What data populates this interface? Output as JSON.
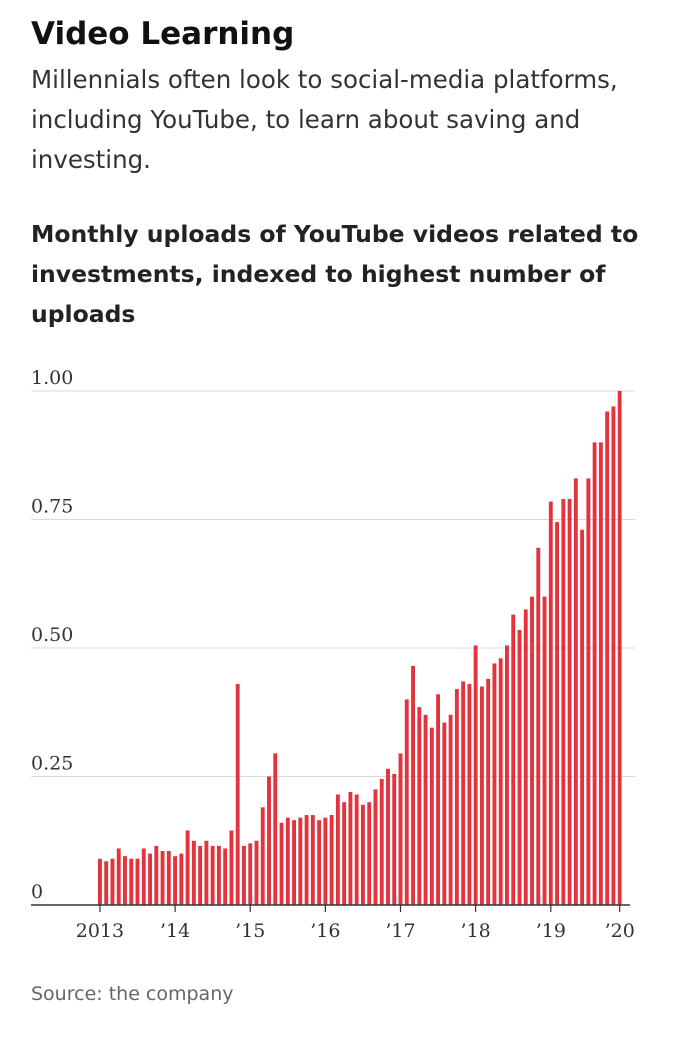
{
  "header": {
    "title": "Video Learning",
    "subtitle": "Millennials often look to social-media platforms, including YouTube, to learn about saving and investing."
  },
  "source": "Source: the company",
  "colors": {
    "bar": "#e4333d",
    "grid": "#d9d9d9",
    "axis": "#333333"
  },
  "chart_data": {
    "type": "bar",
    "title": "Monthly uploads of YouTube videos related to investments, indexed to highest number of uploads",
    "xlabel": "",
    "ylabel": "",
    "ylim": [
      0,
      1
    ],
    "yticks": [
      0,
      0.25,
      0.5,
      0.75,
      1.0
    ],
    "ytick_labels": [
      "0",
      "0.25",
      "0.50",
      "0.75",
      "1.00"
    ],
    "xtick_labels": [
      "2013",
      "’14",
      "’15",
      "’16",
      "’17",
      "’18",
      "’19",
      "’20"
    ],
    "grid": true,
    "legend": "none",
    "series": [
      {
        "values": [
          0.09,
          0.085,
          0.09,
          0.11,
          0.095,
          0.09,
          0.09,
          0.11,
          0.1,
          0.115,
          0.105,
          0.105,
          0.095,
          0.1,
          0.145,
          0.125,
          0.115,
          0.125,
          0.115,
          0.115,
          0.11,
          0.145,
          0.43,
          0.115,
          0.12,
          0.125,
          0.19,
          0.25,
          0.295,
          0.16,
          0.17,
          0.165,
          0.17,
          0.175,
          0.175,
          0.165,
          0.17,
          0.175,
          0.215,
          0.2,
          0.22,
          0.215,
          0.195,
          0.2,
          0.225,
          0.245,
          0.265,
          0.255,
          0.295,
          0.4,
          0.465,
          0.385,
          0.37,
          0.345,
          0.41,
          0.355,
          0.37,
          0.42,
          0.435,
          0.43,
          0.505,
          0.425,
          0.44,
          0.47,
          0.48,
          0.505,
          0.565,
          0.535,
          0.575,
          0.6,
          0.695,
          0.6,
          0.785,
          0.745,
          0.79,
          0.79,
          0.83,
          0.73,
          0.83,
          0.9,
          0.9,
          0.96,
          0.97,
          1.0
        ]
      }
    ]
  }
}
